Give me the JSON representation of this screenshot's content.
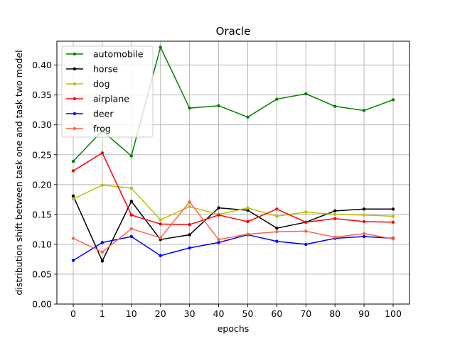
{
  "chart_data": {
    "type": "line",
    "title": "Oracle",
    "xlabel": "epochs",
    "ylabel": "distribution shift between task one and task two model",
    "categories": [
      "0",
      "1",
      "10",
      "20",
      "30",
      "40",
      "50",
      "60",
      "70",
      "80",
      "90",
      "100"
    ],
    "ylim": [
      0.0,
      0.44
    ],
    "yticks": [
      "0.00",
      "0.05",
      "0.10",
      "0.15",
      "0.20",
      "0.25",
      "0.30",
      "0.35",
      "0.40"
    ],
    "grid": true,
    "legend_position": "top-left",
    "series": [
      {
        "name": "automobile",
        "color": "#008000",
        "values": [
          0.239,
          0.29,
          0.248,
          0.43,
          0.328,
          0.332,
          0.313,
          0.343,
          0.352,
          0.331,
          0.324,
          0.342
        ]
      },
      {
        "name": "horse",
        "color": "#000000",
        "values": [
          0.181,
          0.072,
          0.172,
          0.108,
          0.116,
          0.161,
          0.157,
          0.127,
          0.137,
          0.156,
          0.159,
          0.159
        ]
      },
      {
        "name": "dog",
        "color": "#bfbf00",
        "values": [
          0.176,
          0.199,
          0.194,
          0.141,
          0.163,
          0.15,
          0.161,
          0.147,
          0.154,
          0.15,
          0.149,
          0.147
        ]
      },
      {
        "name": "airplane",
        "color": "#ff0000",
        "values": [
          0.223,
          0.253,
          0.149,
          0.134,
          0.133,
          0.149,
          0.138,
          0.159,
          0.137,
          0.143,
          0.138,
          0.137
        ]
      },
      {
        "name": "deer",
        "color": "#0000ff",
        "values": [
          0.073,
          0.103,
          0.113,
          0.081,
          0.094,
          0.103,
          0.116,
          0.105,
          0.1,
          0.11,
          0.113,
          0.11
        ]
      },
      {
        "name": "frog",
        "color": "#ff6347",
        "values": [
          0.11,
          0.087,
          0.126,
          0.111,
          0.171,
          0.108,
          0.117,
          0.121,
          0.122,
          0.112,
          0.118,
          0.109
        ]
      }
    ]
  }
}
